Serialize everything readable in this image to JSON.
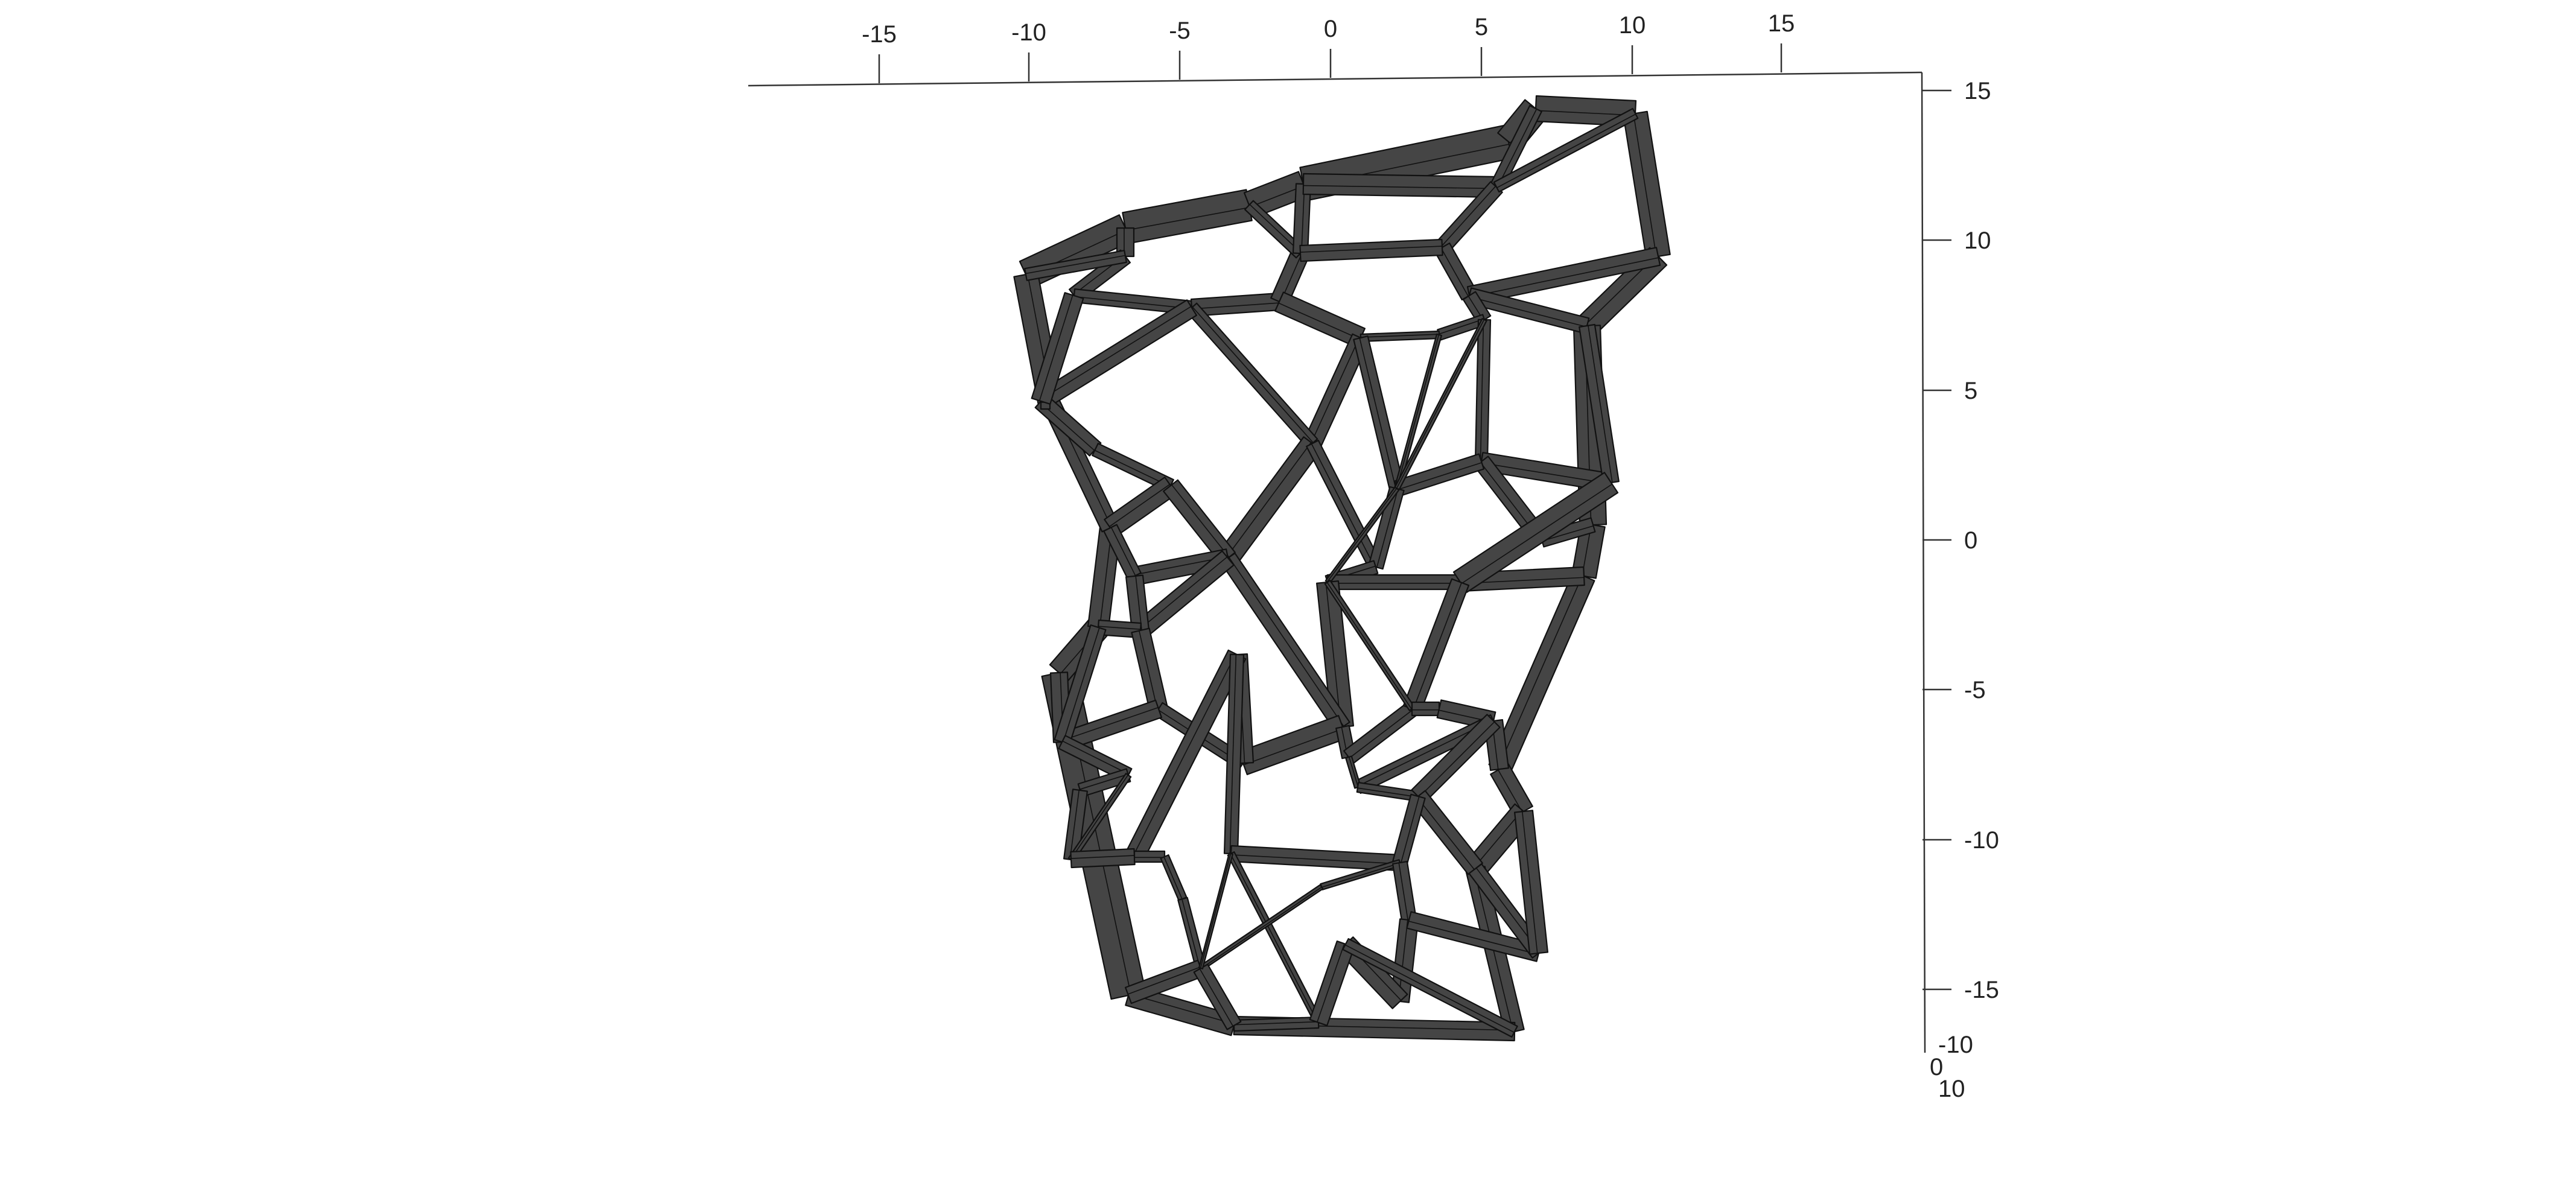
{
  "figure": {
    "kind": "3d-voronoi-lattice",
    "strut_color": "#454545",
    "edge_color": "#111111",
    "background": "#ffffff"
  },
  "axes": {
    "x_ticks": [
      "-15",
      "-10",
      "-5",
      "0",
      "5",
      "10",
      "15"
    ],
    "y_ticks": [
      "15",
      "10",
      "5",
      "0",
      "-5",
      "-10",
      "-15"
    ],
    "z_ticks": [
      "-10",
      "0",
      "10"
    ]
  }
}
